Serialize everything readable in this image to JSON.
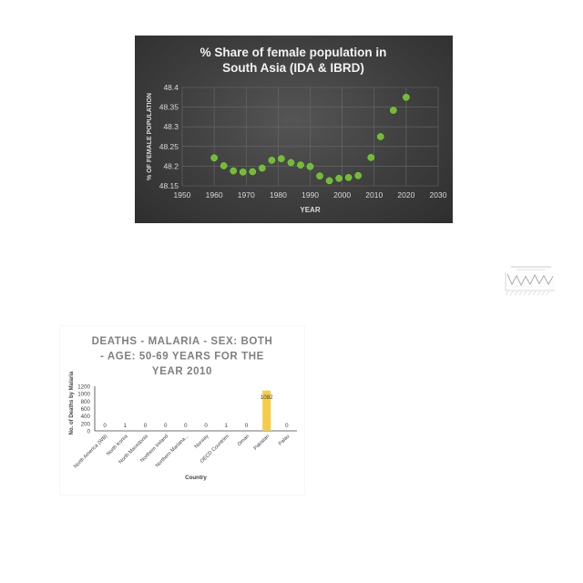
{
  "chart_data": [
    {
      "type": "scatter",
      "title": "% Share of female population in South Asia (IDA & IBRD)",
      "xlabel": "YEAR",
      "ylabel": "% OF FEMALE POPULATION",
      "xlim": [
        1950,
        2030
      ],
      "ylim": [
        48.15,
        48.4
      ],
      "xticks": [
        "1950",
        "1960",
        "1970",
        "1980",
        "1990",
        "2000",
        "2010",
        "2020",
        "2030"
      ],
      "yticks": [
        "48.15",
        "48.2",
        "48.25",
        "48.3",
        "48.35",
        "48.4"
      ],
      "grid": true,
      "background": "#3a3a3a",
      "point_color": "#6fbf2f",
      "series": [
        {
          "x": [
            1960,
            1963,
            1966,
            1969,
            1972,
            1975,
            1978,
            1981,
            1984,
            1987,
            1990,
            1993,
            1996,
            1999,
            2002,
            2005,
            2009,
            2012,
            2016,
            2020
          ],
          "y": [
            48.221,
            48.201,
            48.188,
            48.185,
            48.186,
            48.195,
            48.215,
            48.219,
            48.209,
            48.203,
            48.199,
            48.175,
            48.163,
            48.169,
            48.171,
            48.176,
            48.222,
            48.275,
            48.342,
            48.375
          ]
        }
      ]
    },
    {
      "type": "line",
      "title": "",
      "note": "small thumbnail chart, text not legible",
      "line_color": "#9a9a9a",
      "series": [
        {
          "values": [
            1,
            0.3,
            0.9,
            0.25,
            0.85,
            0.3,
            0.95,
            0.35,
            0.9,
            0.3,
            0.85
          ]
        }
      ]
    },
    {
      "type": "bar",
      "title": "DEATHS - MALARIA - SEX: BOTH - AGE: 50-69 YEARS FOR THE YEAR 2010",
      "xlabel": "Country",
      "ylabel": "No. of Deaths by Malaria",
      "ylim": [
        0,
        1200
      ],
      "yticks": [
        "0",
        "200",
        "400",
        "600",
        "800",
        "1000",
        "1200"
      ],
      "bar_color": "#f5cc45",
      "categories": [
        "North America (WB)",
        "North Korea",
        "North Macedonia",
        "Northern Ireland",
        "Northern Mariana...",
        "Norway",
        "OECD Countries",
        "Oman",
        "Pakistan",
        "Palau"
      ],
      "values": [
        0,
        1,
        0,
        0,
        0,
        0,
        1,
        0,
        1082,
        0
      ],
      "data_labels": [
        "0",
        "1",
        "0",
        "0",
        "0",
        "0",
        "1",
        "0",
        "1082",
        "0"
      ]
    }
  ]
}
